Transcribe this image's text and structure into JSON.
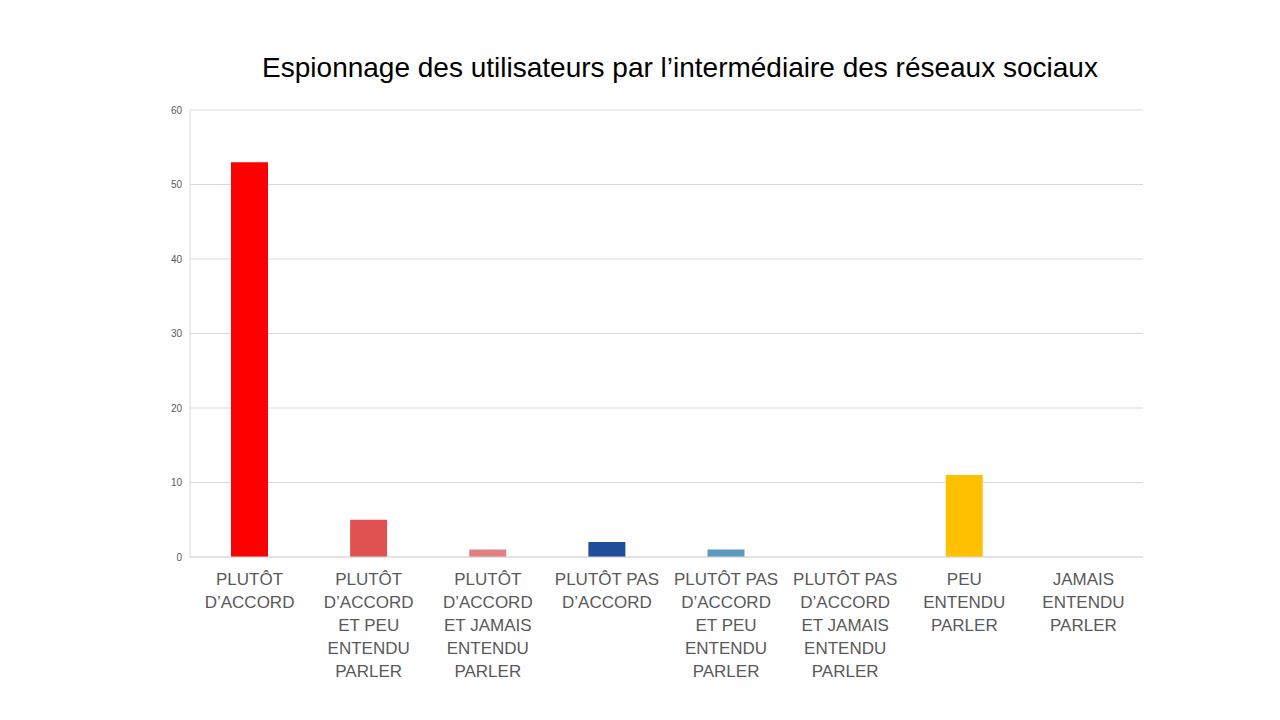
{
  "chart_data": {
    "type": "bar",
    "title": "Espionnage des utilisateurs par l’intermédiaire des réseaux sociaux",
    "categories": [
      "PLUTÔT D’ACCORD",
      "PLUTÔT D’ACCORD ET PEU ENTENDU PARLER",
      "PLUTÔT D’ACCORD ET JAMAIS ENTENDU PARLER",
      "PLUTÔT PAS D’ACCORD",
      "PLUTÔT PAS D’ACCORD ET PEU ENTENDU PARLER",
      "PLUTÔT PAS D’ACCORD ET JAMAIS ENTENDU PARLER",
      "PEU ENTENDU PARLER",
      "JAMAIS ENTENDU PARLER"
    ],
    "values": [
      53,
      5,
      1,
      2,
      1,
      0,
      11,
      0
    ],
    "colors": [
      "#ff0000",
      "#e05252",
      "#e08080",
      "#1f4e9a",
      "#5b9bc0",
      "#9dc3e6",
      "#ffc000",
      "#ffd966"
    ],
    "ylim": [
      0,
      60
    ],
    "yticks": [
      0,
      10,
      20,
      30,
      40,
      50,
      60
    ],
    "grid": true
  }
}
